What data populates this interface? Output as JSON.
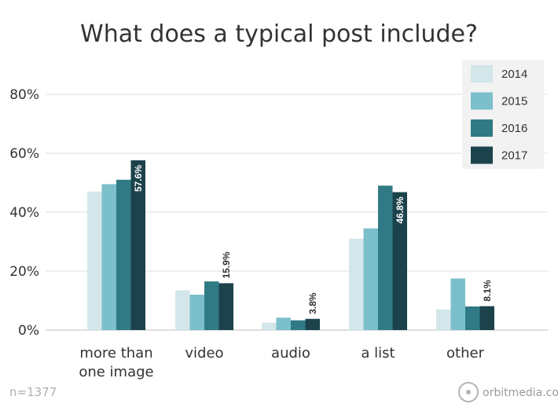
{
  "chart_data": {
    "type": "bar",
    "title": "What does a typical post include?",
    "categories": [
      [
        "more than",
        "one image"
      ],
      [
        "video"
      ],
      [
        "audio"
      ],
      [
        "a list"
      ],
      [
        "other"
      ]
    ],
    "series": [
      {
        "name": "2014",
        "color": "#d3e6e9",
        "values": [
          47,
          13.5,
          2.5,
          31,
          7
        ]
      },
      {
        "name": "2015",
        "color": "#7bbfcb",
        "values": [
          49.5,
          12,
          4.2,
          34.5,
          17.5
        ]
      },
      {
        "name": "2016",
        "color": "#2f7a85",
        "values": [
          51,
          16.5,
          3.3,
          49,
          8
        ]
      },
      {
        "name": "2017",
        "color": "#1c434c",
        "values": [
          57.6,
          15.9,
          3.8,
          46.8,
          8.1
        ]
      }
    ],
    "data_labels": {
      "series": "2017",
      "texts": [
        "57.6%",
        "15.9%",
        "3.8%",
        "46.8%",
        "8.1%"
      ]
    },
    "y_ticks": [
      {
        "value": 0,
        "label": "0%"
      },
      {
        "value": 20,
        "label": "20%"
      },
      {
        "value": 40,
        "label": "40%"
      },
      {
        "value": 60,
        "label": "60%"
      },
      {
        "value": 80,
        "label": "80%"
      }
    ],
    "ylim": [
      0,
      80
    ],
    "grid": true,
    "legend_position": "top-right"
  },
  "footnote": "n=1377",
  "brand": "orbitmedia.com"
}
